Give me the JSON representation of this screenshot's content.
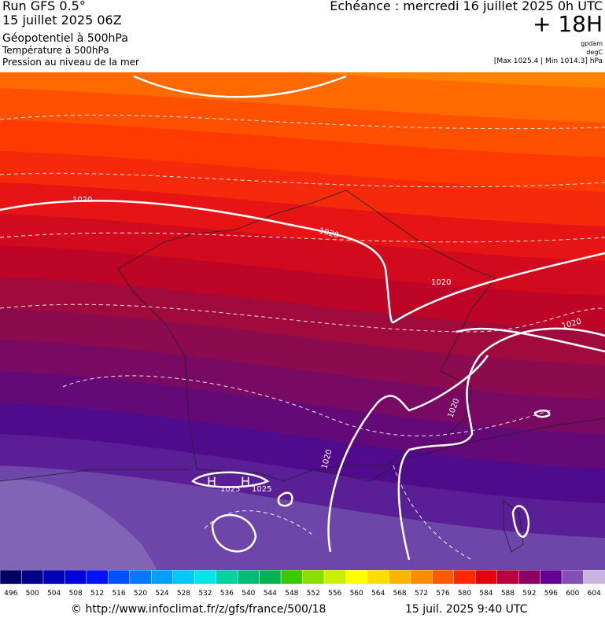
{
  "header": {
    "run": "Run GFS 0.5°",
    "run_date": "15 juillet 2025 06Z",
    "field_1": "Géopotentiel à 500hPa",
    "field_2": "Température à 500hPa",
    "field_3": "Pression au niveau de la mer",
    "forecast": "Echéance : mercredi 16 juillet 2025 0h UTC",
    "lead": "+ 18H",
    "unit_1": "gpdam",
    "unit_2": "degC",
    "range": "[Max 1025.4 | Min 1014.3] hPa"
  },
  "map": {
    "isobar_labels": [
      "1020",
      "1020",
      "1020",
      "1020",
      "1020",
      "1020",
      "1025",
      "1025"
    ],
    "highs": [
      "H",
      "H"
    ]
  },
  "colorbar": {
    "ticks": [
      496,
      500,
      504,
      508,
      512,
      516,
      520,
      524,
      528,
      532,
      536,
      540,
      544,
      548,
      552,
      556,
      560,
      564,
      568,
      572,
      576,
      580,
      584,
      588,
      592,
      596,
      600,
      604
    ],
    "colors": [
      "#000064",
      "#00008c",
      "#0000b4",
      "#0000dc",
      "#0014ff",
      "#0050ff",
      "#0078ff",
      "#00a0ff",
      "#00c8ff",
      "#00e6e6",
      "#00d2a0",
      "#00be78",
      "#00b450",
      "#3cc800",
      "#8cdc00",
      "#c8f000",
      "#ffff00",
      "#ffdc00",
      "#ffb400",
      "#ff8c00",
      "#ff5a00",
      "#ff2800",
      "#e6000a",
      "#b4003c",
      "#8c0064",
      "#640096",
      "#8250b4",
      "#c8b4dc"
    ]
  },
  "footer": {
    "source": "© http://www.infoclimat.fr/z/gfs/france/500/18",
    "timestamp": "15 juil. 2025  9:40 UTC"
  }
}
